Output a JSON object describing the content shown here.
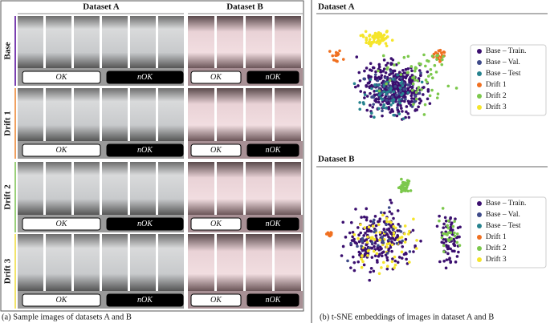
{
  "left": {
    "columns": [
      "Dataset A",
      "Dataset B"
    ],
    "rows": [
      "Base",
      "Drift 1",
      "Drift 2",
      "Drift 3"
    ],
    "labels": [
      "OK",
      "nOK"
    ],
    "caption": "(a) Sample images of datasets A and B"
  },
  "right": {
    "panels": [
      {
        "title": "Dataset A"
      },
      {
        "title": "Dataset B"
      }
    ],
    "legend": [
      {
        "name": "Base – Train.",
        "color": "#3b0f6f"
      },
      {
        "name": "Base – Val.",
        "color": "#3e4a89"
      },
      {
        "name": "Base – Test",
        "color": "#26828e"
      },
      {
        "name": "Drift 1",
        "color": "#f07020"
      },
      {
        "name": "Drift 2",
        "color": "#7cc84c"
      },
      {
        "name": "Drift 3",
        "color": "#f5e52a"
      }
    ],
    "caption": "(b) t-SNE embeddings of images in dataset A and B"
  }
}
